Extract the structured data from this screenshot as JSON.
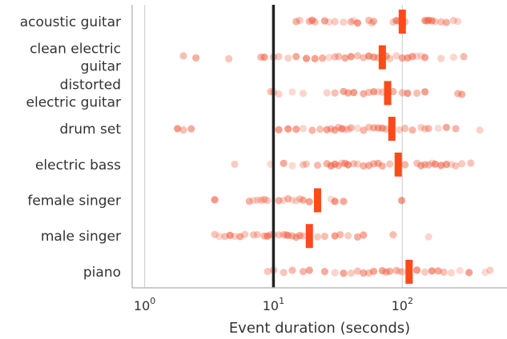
{
  "chart_data": {
    "type": "scatter",
    "orientation": "horizontal",
    "xscale": "log",
    "xlim": [
      0.8,
      650
    ],
    "xlabel": "Event duration (seconds)",
    "ylabel": "",
    "title": "",
    "grid": "vertical at decades",
    "x_ticks": [
      {
        "value": 1,
        "label": "10",
        "exp": "0"
      },
      {
        "value": 10,
        "label": "10",
        "exp": "1"
      },
      {
        "value": 100,
        "label": "10",
        "exp": "2"
      }
    ],
    "reference_line": 10,
    "colors": {
      "points": "#f0593a",
      "median": "#fc4a1a",
      "reference": "#222222",
      "grid": "#d3d3d3",
      "axis": "#bbbbbb"
    },
    "categories": [
      {
        "label_lines": [
          "acoustic guitar"
        ],
        "median": 100,
        "points": [
          15,
          16,
          19,
          20,
          21,
          25,
          27,
          30,
          35,
          40,
          42,
          45,
          55,
          58,
          60,
          85,
          90,
          95,
          105,
          150,
          155,
          160,
          170,
          180,
          200,
          220,
          250,
          270
        ]
      },
      {
        "label_lines": [
          "clean electric",
          "guitar"
        ],
        "median": 70,
        "points": [
          2.0,
          2.5,
          4.5,
          8,
          8.5,
          10,
          11,
          13,
          15,
          18,
          21,
          24,
          27,
          30,
          32,
          36,
          40,
          45,
          50,
          55,
          60,
          65,
          75,
          80,
          90,
          100,
          110,
          120,
          130,
          140,
          150,
          200,
          250,
          300
        ]
      },
      {
        "label_lines": [
          "distorted",
          "electric guitar"
        ],
        "median": 77,
        "points": [
          9.5,
          10,
          11,
          14,
          17,
          26,
          30,
          35,
          38,
          42,
          50,
          55,
          60,
          65,
          70,
          85,
          100,
          110,
          130,
          150,
          270,
          290
        ]
      },
      {
        "label_lines": [
          "drum set"
        ],
        "median": 83,
        "points": [
          1.8,
          2.0,
          2.3,
          11,
          13,
          15,
          17,
          20,
          23,
          26,
          28,
          30,
          32,
          34,
          36,
          38,
          40,
          45,
          50,
          55,
          60,
          65,
          70,
          75,
          95,
          105,
          120,
          140,
          150,
          160,
          190,
          220,
          260,
          400
        ]
      },
      {
        "label_lines": [
          "electric bass"
        ],
        "median": 93,
        "points": [
          5,
          9.5,
          12,
          14,
          17,
          18,
          22,
          26,
          28,
          30,
          32,
          34,
          36,
          38,
          42,
          45,
          50,
          55,
          60,
          65,
          70,
          80,
          105,
          130,
          140,
          150,
          160,
          170,
          180,
          200,
          220,
          240,
          260,
          290,
          340
        ]
      },
      {
        "label_lines": [
          "female singer"
        ],
        "median": 22,
        "points": [
          3.5,
          6.5,
          7,
          7.5,
          8,
          8.5,
          9,
          11,
          12,
          13,
          14,
          15,
          16,
          17,
          19,
          28,
          30,
          35,
          99
        ]
      },
      {
        "label_lines": [
          "male singer"
        ],
        "median": 19,
        "points": [
          3.5,
          3.8,
          4.2,
          4.6,
          5,
          5.5,
          6,
          7,
          7.5,
          8.5,
          9,
          9.5,
          10,
          11,
          12,
          12.5,
          13,
          14,
          15,
          16,
          17,
          22,
          25,
          30,
          33,
          38,
          45,
          50,
          85,
          160
        ]
      },
      {
        "label_lines": [
          "piano"
        ],
        "median": 113,
        "points": [
          9,
          10,
          12,
          14,
          17,
          19,
          25,
          30,
          35,
          40,
          45,
          50,
          55,
          60,
          70,
          75,
          80,
          90,
          95,
          100,
          130,
          150,
          170,
          190,
          210,
          240,
          280,
          330,
          440,
          480
        ]
      }
    ]
  }
}
